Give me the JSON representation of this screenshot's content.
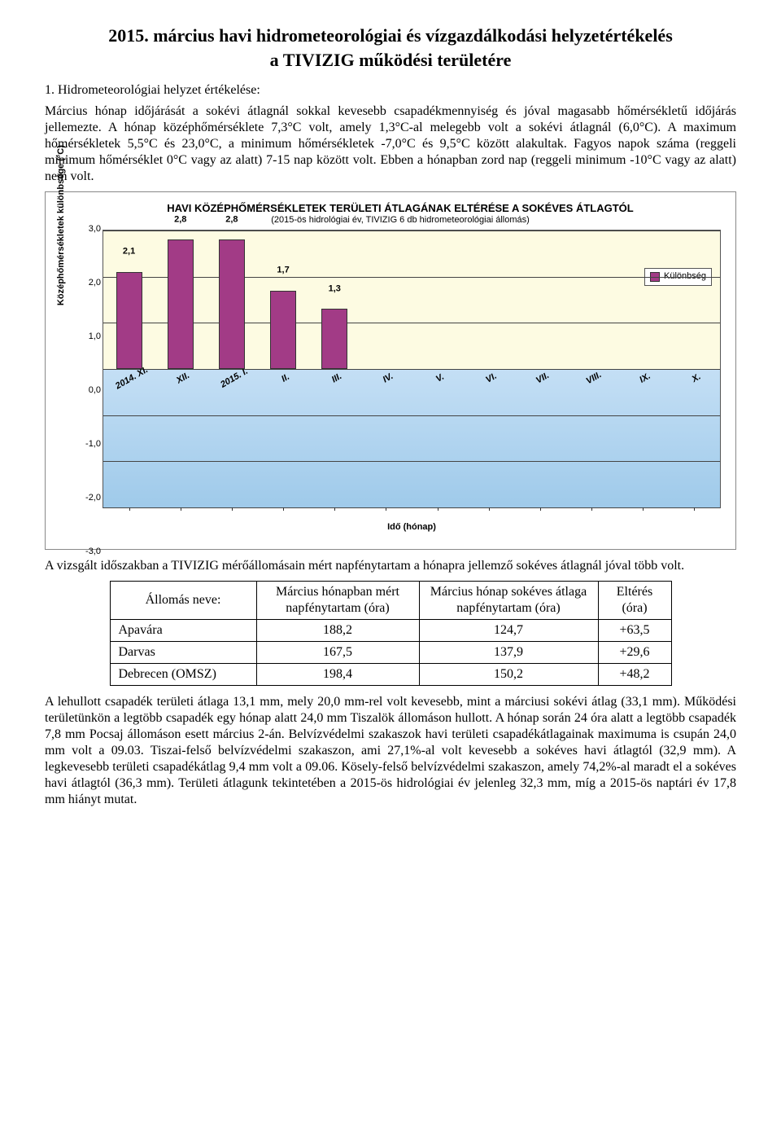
{
  "title_main": "2015. március havi hidrometeorológiai és vízgazdálkodási helyzetértékelés",
  "title_sub": "a TIVIZIG működési területére",
  "section1_head": "1. Hidrometeorológiai helyzet értékelése:",
  "para1": "Március hónap időjárását a sokévi átlagnál sokkal kevesebb csapadékmennyiség és jóval magasabb hőmérsékletű időjárás jellemezte. A hónap középhőmérséklete 7,3°C volt, amely 1,3°C-al melegebb volt a sokévi átlagnál (6,0°C). A maximum hőmérsékletek 5,5°C és 23,0°C, a minimum hőmérsékletek -7,0°C és 9,5°C között alakultak. Fagyos napok száma (reggeli minimum hőmérséklet 0°C vagy az alatt) 7-15 nap között volt. Ebben a hónapban zord nap (reggeli minimum -10°C vagy az alatt) nem volt.",
  "chart": {
    "type": "bar",
    "title": "HAVI KÖZÉPHŐMÉRSÉKLETEK TERÜLETI ÁTLAGÁNAK ELTÉRÉSE A SOKÉVES ÁTLAGTÓL",
    "subtitle": "(2015-ös hidrológiai év, TIVIZIG 6 db hidrometeorológiai állomás)",
    "y_axis_title": "Középhőmérsékletek különbsége (°C)",
    "x_axis_title": "Idő (hónap)",
    "ylim": [
      -3.0,
      3.0
    ],
    "ytick_step": 1.0,
    "y_ticks": [
      "-3,0",
      "-2,0",
      "-1,0",
      "0,0",
      "1,0",
      "2,0",
      "3,0"
    ],
    "categories": [
      "2014. XI.",
      "XII.",
      "2015. I.",
      "II.",
      "III.",
      "IV.",
      "V.",
      "VI.",
      "VII.",
      "VIII.",
      "IX.",
      "X."
    ],
    "values": [
      2.1,
      2.8,
      2.8,
      1.7,
      1.3,
      null,
      null,
      null,
      null,
      null,
      null,
      null
    ],
    "value_labels": [
      "2,1",
      "2,8",
      "2,8",
      "1,7",
      "1,3",
      "",
      "",
      "",
      "",
      "",
      "",
      ""
    ],
    "bar_color": "#a23b86",
    "bar_border": "#333333",
    "bg_top": "#fdfbe2",
    "bg_bottom": "#9fcaea",
    "grid_color": "#444444",
    "legend_label": "Különbség",
    "title_fontsize": 13,
    "label_fontsize": 11
  },
  "para2": "A vizsgált időszakban a TIVIZIG mérőállomásain mért napfénytartam a hónapra jellemző sokéves átlagnál jóval több volt.",
  "table": {
    "columns": [
      "Állomás neve:",
      "Március hónapban mért napfénytartam (óra)",
      "Március hónap sokéves átlaga napfénytartam (óra)",
      "Eltérés (óra)"
    ],
    "rows": [
      [
        "Apavára",
        "188,2",
        "124,7",
        "+63,5"
      ],
      [
        "Darvas",
        "167,5",
        "137,9",
        "+29,6"
      ],
      [
        "Debrecen (OMSZ)",
        "198,4",
        "150,2",
        "+48,2"
      ]
    ],
    "col_widths": [
      "180px",
      "200px",
      "220px",
      "90px"
    ]
  },
  "para3": "A lehullott csapadék területi átlaga 13,1 mm, mely 20,0 mm-rel volt kevesebb, mint a márciusi sokévi átlag (33,1 mm). Működési területünkön a legtöbb csapadék egy hónap alatt 24,0 mm Tiszalök állomáson hullott. A hónap során 24 óra alatt a legtöbb csapadék 7,8 mm Pocsaj állomáson esett március 2-án. Belvízvédelmi szakaszok havi területi csapadékátlagainak maximuma is csupán 24,0 mm volt a 09.03. Tiszai-felső belvízvédelmi szakaszon, ami 27,1%-al volt kevesebb a sokéves havi átlagtól (32,9 mm). A legkevesebb területi csapadékátlag 9,4 mm volt a 09.06. Kösely-felső belvízvédelmi szakaszon, amely 74,2%-al maradt el a sokéves havi átlagtól (36,3 mm). Területi átlagunk tekintetében a 2015-ös hidrológiai év jelenleg 32,3 mm, míg a 2015-ös naptári év 17,8 mm hiányt mutat."
}
